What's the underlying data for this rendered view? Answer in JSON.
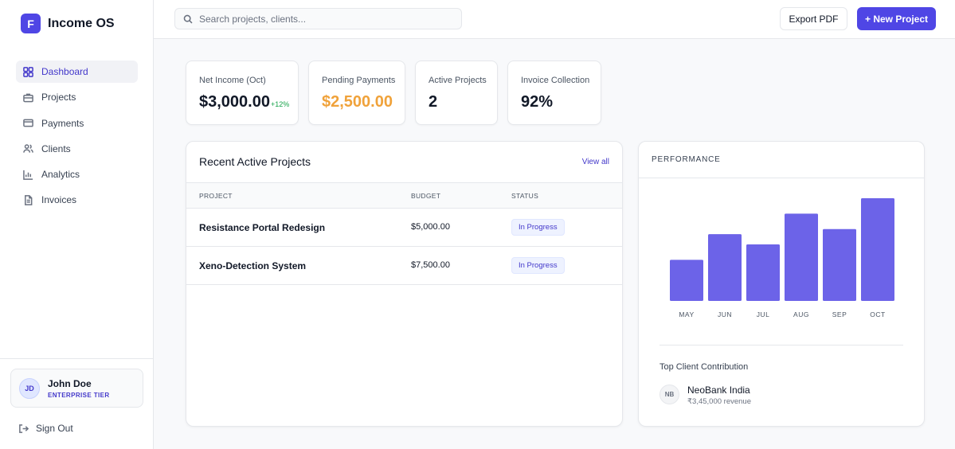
{
  "brand": {
    "logo_letter": "F",
    "name": "Income OS",
    "accent": "#4f46e5"
  },
  "sidebar": {
    "items": [
      {
        "label": "Dashboard",
        "icon": "dashboard-grid-icon",
        "active": true
      },
      {
        "label": "Projects",
        "icon": "briefcase-icon"
      },
      {
        "label": "Payments",
        "icon": "credit-card-icon"
      },
      {
        "label": "Clients",
        "icon": "users-icon"
      },
      {
        "label": "Analytics",
        "icon": "bar-chart-icon"
      },
      {
        "label": "Invoices",
        "icon": "document-icon"
      }
    ],
    "user": {
      "initials": "JD",
      "name": "John Doe",
      "tier": "ENTERPRISE TIER"
    },
    "sign_out": "Sign Out"
  },
  "header": {
    "search_placeholder": "Search projects, clients...",
    "export_label": "Export PDF",
    "new_project_label": "+ New Project"
  },
  "stats": [
    {
      "label": "Net Income (Oct)",
      "value": "$3,000.00",
      "delta": "+12%"
    },
    {
      "label": "Pending Payments",
      "value": "$2,500.00",
      "value_color": "#f0a23a"
    },
    {
      "label": "Active Projects",
      "value": "2"
    },
    {
      "label": "Invoice Collection",
      "value": "92%"
    }
  ],
  "projects": {
    "title": "Recent Active Projects",
    "view_all": "View all",
    "columns": [
      "PROJECT",
      "BUDGET",
      "STATUS"
    ],
    "rows": [
      {
        "name": "Resistance Portal Redesign",
        "budget": "$5,000.00",
        "status": "In Progress"
      },
      {
        "name": "Xeno-Detection System",
        "budget": "$7,500.00",
        "status": "In Progress"
      }
    ]
  },
  "performance": {
    "title": "PERFORMANCE",
    "top_client_label": "Top Client Contribution",
    "client": {
      "initials": "NB",
      "name": "NeoBank India",
      "revenue": "₹3,45,000 revenue"
    }
  },
  "chart_data": {
    "type": "bar",
    "categories": [
      "MAY",
      "JUN",
      "JUL",
      "AUG",
      "SEP",
      "OCT"
    ],
    "values": [
      40,
      65,
      55,
      85,
      70,
      100
    ],
    "ylim": [
      0,
      100
    ],
    "grid": false,
    "bar_color": "#6c63e8"
  }
}
